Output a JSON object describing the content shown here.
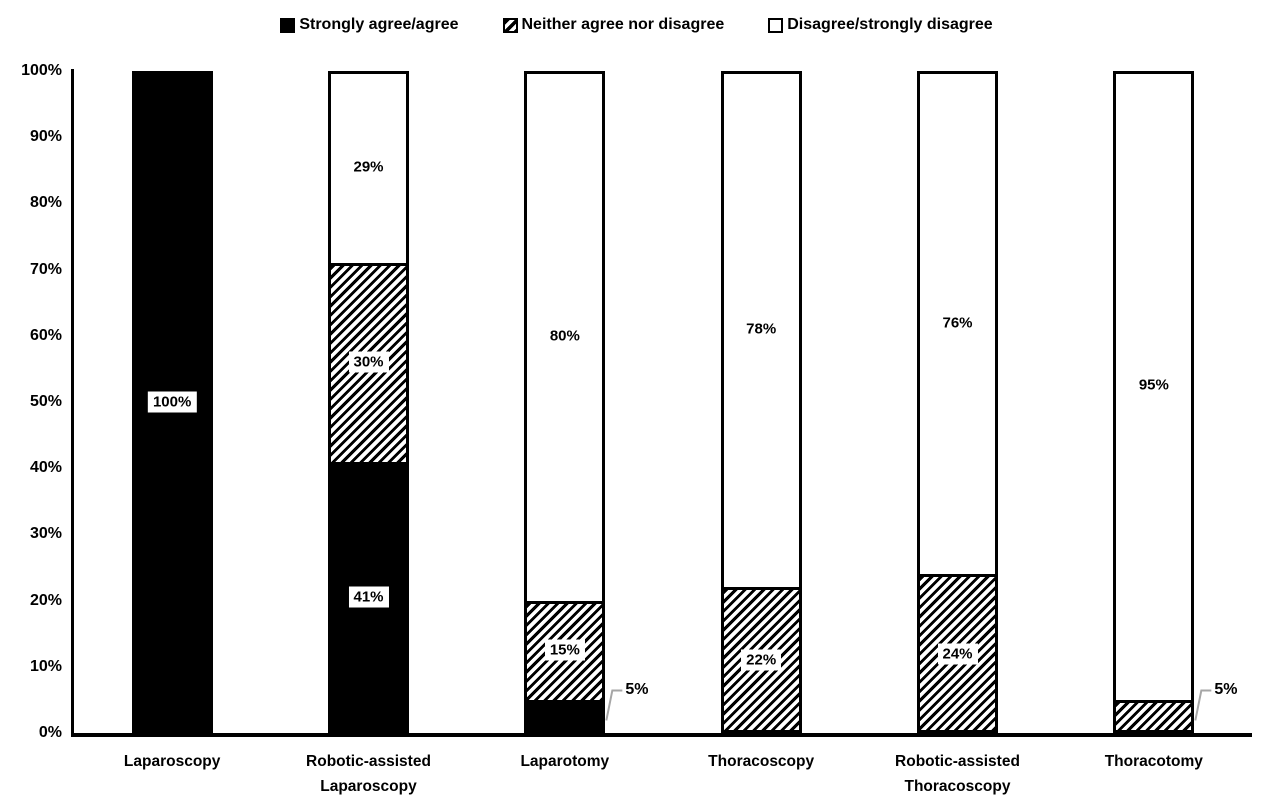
{
  "chart_data": {
    "type": "bar",
    "stacked": true,
    "orientation": "vertical",
    "title": "",
    "legend_position": "top",
    "gridlines": false,
    "categories": [
      "Laparoscopy",
      "Robotic-assisted Laparoscopy",
      "Laparotomy",
      "Thoracoscopy",
      "Robotic-assisted Thoracoscopy",
      "Thoracotomy"
    ],
    "category_label_lines": [
      [
        "Laparoscopy"
      ],
      [
        "Robotic-assisted",
        "Laparoscopy"
      ],
      [
        "Laparotomy"
      ],
      [
        "Thoracoscopy"
      ],
      [
        "Robotic-assisted",
        "Thoracoscopy"
      ],
      [
        "Thoracotomy"
      ]
    ],
    "series": [
      {
        "name": "Strongly agree/agree",
        "pattern": "solid-black",
        "values": [
          100,
          41,
          5,
          0,
          0,
          0
        ],
        "labels": [
          "100%",
          "41%",
          "",
          "",
          "",
          ""
        ]
      },
      {
        "name": "Neither agree nor disagree",
        "pattern": "diagonal-hatch",
        "values": [
          0,
          30,
          15,
          22,
          24,
          5
        ],
        "labels": [
          "",
          "30%",
          "15%",
          "22%",
          "24%",
          ""
        ]
      },
      {
        "name": "Disagree/strongly disagree",
        "pattern": "white-outline",
        "values": [
          0,
          29,
          80,
          78,
          76,
          95
        ],
        "labels": [
          "",
          "29%",
          "80%",
          "78%",
          "76%",
          "95%"
        ]
      }
    ],
    "callouts": [
      {
        "category_index": 2,
        "series_index": 0,
        "text": "5%"
      },
      {
        "category_index": 5,
        "series_index": 1,
        "text": "5%"
      }
    ],
    "y_axis": {
      "min": 0,
      "max": 100,
      "ticks": [
        "0%",
        "10%",
        "20%",
        "30%",
        "40%",
        "50%",
        "60%",
        "70%",
        "80%",
        "90%",
        "100%"
      ]
    },
    "colors": {
      "foreground": "#000000",
      "background": "#ffffff",
      "leader_line": "#a6a6a6"
    }
  }
}
